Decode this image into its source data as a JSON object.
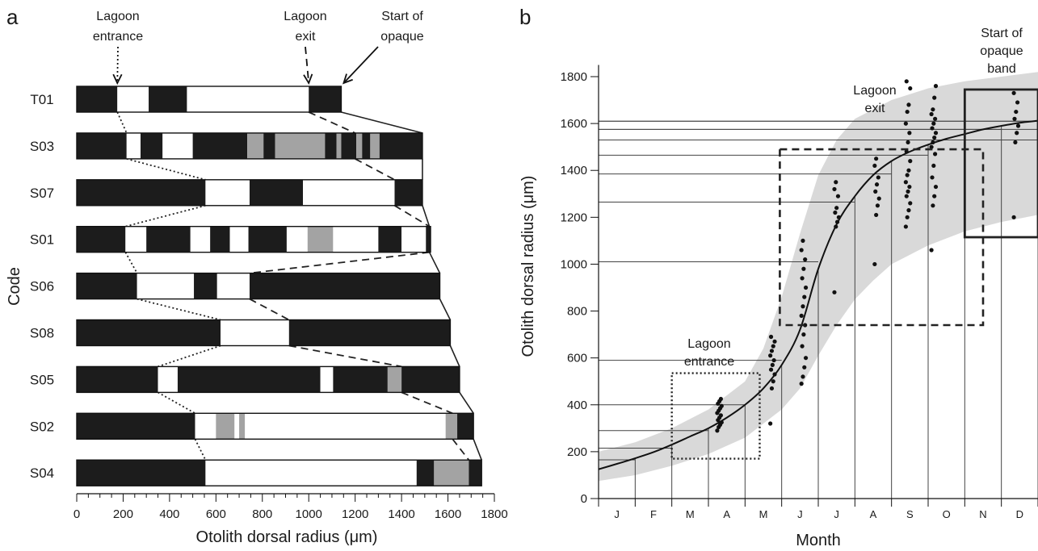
{
  "panels": {
    "a": {
      "letter": "a",
      "annotations": [
        {
          "text": [
            "Lagoon",
            "entrance"
          ],
          "style": "dotted",
          "x": 175
        },
        {
          "text": [
            "Lagoon",
            "exit"
          ],
          "style": "dashed",
          "x": 1000
        },
        {
          "text": [
            "Start of",
            "opaque"
          ],
          "style": "solid",
          "x": 1140
        }
      ]
    },
    "b": {
      "letter": "b",
      "annotations": {
        "entrance": [
          "Lagoon",
          "entrance"
        ],
        "exit": [
          "Lagoon",
          "exit"
        ],
        "opaque": [
          "Start of",
          "opaque",
          "band"
        ]
      }
    }
  },
  "chart_data": [
    {
      "type": "bar",
      "subtype": "horizontal-segmented",
      "title": "",
      "xlabel": "Otolith dorsal radius (μm)",
      "ylabel": "Code",
      "xlim": [
        0,
        1800
      ],
      "xticks": [
        0,
        200,
        400,
        600,
        800,
        1000,
        1200,
        1400,
        1600,
        1800
      ],
      "colors": {
        "black": "#1c1c1c",
        "white": "#ffffff",
        "gray": "#a0a0a0"
      },
      "legend": "none",
      "rows": [
        {
          "code": "T01",
          "entrance": 175,
          "exit": 1000,
          "opaque": 1140,
          "segments": [
            {
              "from": 0,
              "to": 175,
              "c": "black"
            },
            {
              "from": 175,
              "to": 310,
              "c": "white"
            },
            {
              "from": 310,
              "to": 475,
              "c": "black"
            },
            {
              "from": 475,
              "to": 1000,
              "c": "white"
            },
            {
              "from": 1000,
              "to": 1140,
              "c": "black"
            }
          ]
        },
        {
          "code": "S03",
          "entrance": 215,
          "exit": 1200,
          "opaque": 1490,
          "segments": [
            {
              "from": 0,
              "to": 215,
              "c": "black"
            },
            {
              "from": 215,
              "to": 275,
              "c": "white"
            },
            {
              "from": 275,
              "to": 370,
              "c": "black"
            },
            {
              "from": 370,
              "to": 500,
              "c": "white"
            },
            {
              "from": 500,
              "to": 735,
              "c": "black"
            },
            {
              "from": 735,
              "to": 805,
              "c": "gray"
            },
            {
              "from": 805,
              "to": 855,
              "c": "black"
            },
            {
              "from": 855,
              "to": 1070,
              "c": "gray"
            },
            {
              "from": 1070,
              "to": 1120,
              "c": "black"
            },
            {
              "from": 1120,
              "to": 1140,
              "c": "gray"
            },
            {
              "from": 1140,
              "to": 1205,
              "c": "black"
            },
            {
              "from": 1205,
              "to": 1230,
              "c": "gray"
            },
            {
              "from": 1230,
              "to": 1265,
              "c": "black"
            },
            {
              "from": 1265,
              "to": 1305,
              "c": "gray"
            },
            {
              "from": 1305,
              "to": 1490,
              "c": "black"
            }
          ]
        },
        {
          "code": "S07",
          "entrance": 555,
          "exit": 1370,
          "opaque": 1490,
          "segments": [
            {
              "from": 0,
              "to": 555,
              "c": "black"
            },
            {
              "from": 555,
              "to": 745,
              "c": "white"
            },
            {
              "from": 745,
              "to": 975,
              "c": "black"
            },
            {
              "from": 975,
              "to": 1370,
              "c": "white"
            },
            {
              "from": 1370,
              "to": 1490,
              "c": "black"
            }
          ]
        },
        {
          "code": "S01",
          "entrance": 210,
          "exit": 1520,
          "opaque": 1520,
          "segments": [
            {
              "from": 0,
              "to": 210,
              "c": "black"
            },
            {
              "from": 210,
              "to": 300,
              "c": "white"
            },
            {
              "from": 300,
              "to": 490,
              "c": "black"
            },
            {
              "from": 490,
              "to": 575,
              "c": "white"
            },
            {
              "from": 575,
              "to": 660,
              "c": "black"
            },
            {
              "from": 660,
              "to": 740,
              "c": "white"
            },
            {
              "from": 740,
              "to": 905,
              "c": "black"
            },
            {
              "from": 905,
              "to": 995,
              "c": "white"
            },
            {
              "from": 995,
              "to": 1105,
              "c": "gray"
            },
            {
              "from": 1105,
              "to": 1300,
              "c": "white"
            },
            {
              "from": 1300,
              "to": 1400,
              "c": "black"
            },
            {
              "from": 1400,
              "to": 1505,
              "c": "white"
            },
            {
              "from": 1505,
              "to": 1525,
              "c": "black"
            }
          ]
        },
        {
          "code": "S06",
          "entrance": 260,
          "exit": 745,
          "opaque": 1565,
          "segments": [
            {
              "from": 0,
              "to": 260,
              "c": "black"
            },
            {
              "from": 260,
              "to": 505,
              "c": "white"
            },
            {
              "from": 505,
              "to": 605,
              "c": "black"
            },
            {
              "from": 605,
              "to": 745,
              "c": "white"
            },
            {
              "from": 745,
              "to": 1565,
              "c": "black"
            }
          ]
        },
        {
          "code": "S08",
          "entrance": 620,
          "exit": 915,
          "opaque": 1610,
          "segments": [
            {
              "from": 0,
              "to": 620,
              "c": "black"
            },
            {
              "from": 620,
              "to": 915,
              "c": "white"
            },
            {
              "from": 915,
              "to": 1610,
              "c": "black"
            }
          ]
        },
        {
          "code": "S05",
          "entrance": 350,
          "exit": 1400,
          "opaque": 1650,
          "segments": [
            {
              "from": 0,
              "to": 350,
              "c": "black"
            },
            {
              "from": 350,
              "to": 435,
              "c": "white"
            },
            {
              "from": 435,
              "to": 1050,
              "c": "black"
            },
            {
              "from": 1050,
              "to": 1105,
              "c": "white"
            },
            {
              "from": 1105,
              "to": 1340,
              "c": "black"
            },
            {
              "from": 1340,
              "to": 1400,
              "c": "gray"
            },
            {
              "from": 1400,
              "to": 1650,
              "c": "black"
            }
          ]
        },
        {
          "code": "S02",
          "entrance": 510,
          "exit": 1620,
          "opaque": 1710,
          "segments": [
            {
              "from": 0,
              "to": 510,
              "c": "black"
            },
            {
              "from": 510,
              "to": 600,
              "c": "white"
            },
            {
              "from": 600,
              "to": 680,
              "c": "gray"
            },
            {
              "from": 680,
              "to": 700,
              "c": "white"
            },
            {
              "from": 700,
              "to": 725,
              "c": "gray"
            },
            {
              "from": 725,
              "to": 840,
              "c": "white"
            },
            {
              "from": 840,
              "to": 1590,
              "c": "white"
            },
            {
              "from": 1590,
              "to": 1640,
              "c": "gray"
            },
            {
              "from": 1640,
              "to": 1710,
              "c": "black"
            }
          ]
        },
        {
          "code": "S04",
          "entrance": 555,
          "exit": 1690,
          "opaque": 1745,
          "segments": [
            {
              "from": 0,
              "to": 555,
              "c": "black"
            },
            {
              "from": 555,
              "to": 1465,
              "c": "white"
            },
            {
              "from": 1465,
              "to": 1540,
              "c": "black"
            },
            {
              "from": 1540,
              "to": 1690,
              "c": "gray"
            },
            {
              "from": 1690,
              "to": 1745,
              "c": "black"
            }
          ]
        }
      ]
    },
    {
      "type": "scatter",
      "title": "",
      "xlabel": "Month",
      "ylabel": "Otolith dorsal radius (μm)",
      "xlim": [
        0,
        12
      ],
      "ylim": [
        0,
        1850
      ],
      "xticks": [
        "J",
        "F",
        "M",
        "A",
        "M",
        "J",
        "J",
        "A",
        "S",
        "O",
        "N",
        "D"
      ],
      "yticks": [
        0,
        200,
        400,
        600,
        800,
        1000,
        1200,
        1400,
        1600,
        1800
      ],
      "grid": "on",
      "legend": "none",
      "curve": [
        [
          0,
          125
        ],
        [
          0.5,
          148
        ],
        [
          1,
          172
        ],
        [
          1.5,
          198
        ],
        [
          2,
          230
        ],
        [
          2.5,
          265
        ],
        [
          3,
          300
        ],
        [
          3.5,
          345
        ],
        [
          4,
          400
        ],
        [
          4.5,
          470
        ],
        [
          5,
          570
        ],
        [
          5.5,
          720
        ],
        [
          6,
          980
        ],
        [
          6.5,
          1170
        ],
        [
          7,
          1290
        ],
        [
          7.5,
          1380
        ],
        [
          8,
          1440
        ],
        [
          8.5,
          1480
        ],
        [
          9,
          1510
        ],
        [
          9.5,
          1535
        ],
        [
          10,
          1555
        ],
        [
          10.5,
          1575
        ],
        [
          11,
          1590
        ],
        [
          11.5,
          1603
        ],
        [
          12,
          1612
        ]
      ],
      "band_upper": [
        [
          0,
          200
        ],
        [
          1,
          240
        ],
        [
          2,
          300
        ],
        [
          3,
          380
        ],
        [
          4,
          500
        ],
        [
          4.5,
          640
        ],
        [
          5,
          860
        ],
        [
          5.5,
          1130
        ],
        [
          6,
          1380
        ],
        [
          6.5,
          1530
        ],
        [
          7,
          1620
        ],
        [
          8,
          1700
        ],
        [
          9,
          1750
        ],
        [
          10,
          1780
        ],
        [
          11,
          1800
        ],
        [
          12,
          1820
        ]
      ],
      "band_lower": [
        [
          0,
          75
        ],
        [
          1,
          100
        ],
        [
          2,
          140
        ],
        [
          3,
          190
        ],
        [
          4,
          260
        ],
        [
          5,
          380
        ],
        [
          5.5,
          470
        ],
        [
          6,
          610
        ],
        [
          6.5,
          740
        ],
        [
          7,
          850
        ],
        [
          7.5,
          930
        ],
        [
          8,
          1000
        ],
        [
          9,
          1080
        ],
        [
          10,
          1140
        ],
        [
          11,
          1180
        ],
        [
          12,
          1210
        ]
      ],
      "boxes": {
        "entrance": {
          "x": [
            2,
            4.4
          ],
          "y": [
            170,
            535
          ],
          "style": "dotted"
        },
        "exit": {
          "x": [
            4.95,
            10.5
          ],
          "y": [
            740,
            1490
          ],
          "style": "dashed"
        },
        "opaque": {
          "x": [
            10,
            12
          ],
          "y": [
            1115,
            1745
          ],
          "style": "solid"
        }
      },
      "reference_lines": [
        {
          "y": 1610,
          "x_end": 12
        },
        {
          "y": 1575,
          "x_end": 11
        },
        {
          "y": 1530,
          "x_end": 10
        },
        {
          "y": 1465,
          "x_end": 9
        },
        {
          "y": 1385,
          "x_end": 8
        },
        {
          "y": 1265,
          "x_end": 7
        },
        {
          "y": 1010,
          "x_end": 6
        },
        {
          "y": 590,
          "x_end": 5
        },
        {
          "y": 400,
          "x_end": 4
        },
        {
          "y": 290,
          "x_end": 3
        },
        {
          "y": 215,
          "x_end": 2
        },
        {
          "y": 165,
          "x_end": 1
        }
      ],
      "points": [
        {
          "x": 3.3,
          "y": [
            290,
            305,
            315,
            325,
            335,
            345,
            355,
            365,
            375,
            385,
            395,
            405,
            415,
            425
          ]
        },
        {
          "x": 4.75,
          "y": [
            320,
            470,
            500,
            530,
            550,
            570,
            590,
            610,
            630,
            650,
            670,
            690
          ]
        },
        {
          "x": 5.6,
          "y": [
            490,
            520,
            560,
            600,
            650,
            700,
            740,
            780,
            820,
            860,
            900,
            940,
            980,
            1020,
            1060,
            1100
          ]
        },
        {
          "x": 6.5,
          "y": [
            880,
            1160,
            1180,
            1200,
            1220,
            1240,
            1290,
            1320,
            1350
          ]
        },
        {
          "x": 7.6,
          "y": [
            1000,
            1210,
            1250,
            1280,
            1310,
            1340,
            1370,
            1420,
            1450
          ]
        },
        {
          "x": 8.45,
          "y": [
            1160,
            1200,
            1230,
            1260,
            1290,
            1310,
            1330,
            1350,
            1380,
            1400,
            1440,
            1480,
            1520,
            1560,
            1600,
            1650,
            1680,
            1750,
            1780
          ]
        },
        {
          "x": 9.15,
          "y": [
            1060,
            1250,
            1290,
            1330,
            1370,
            1420,
            1470,
            1500,
            1520,
            1540,
            1560,
            1580,
            1600,
            1620,
            1640,
            1660,
            1710,
            1760
          ]
        },
        {
          "x": 11.4,
          "y": [
            1200,
            1520,
            1560,
            1590,
            1620,
            1650,
            1690,
            1730
          ]
        }
      ]
    }
  ]
}
